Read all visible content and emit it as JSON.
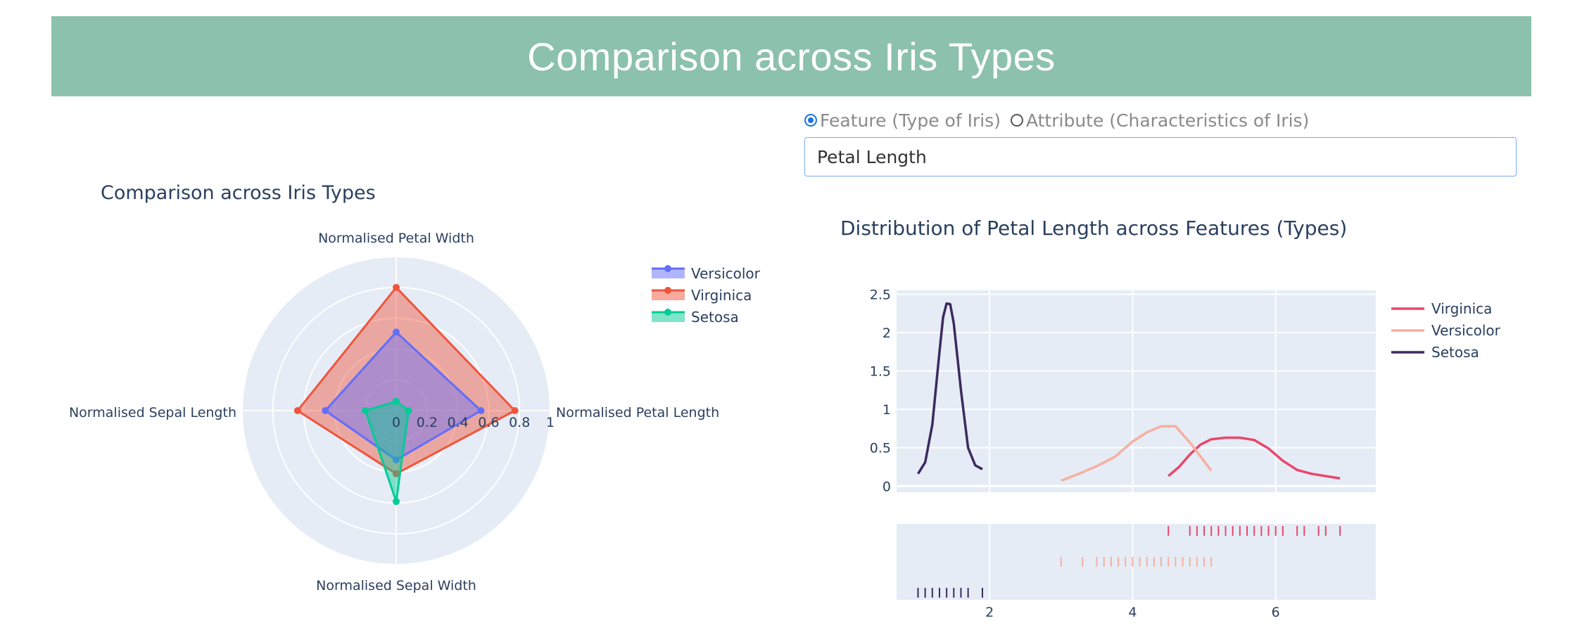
{
  "header": {
    "title": "Comparison across Iris Types"
  },
  "controls": {
    "radio_options": [
      "Feature (Type of Iris)",
      "Attribute (Characteristics of Iris)"
    ],
    "selected_radio": 0,
    "dropdown_value": "Petal Length"
  },
  "colors": {
    "header_bg": "#8bc1ad",
    "plot_bg": "#e5ecf6",
    "versicolor_radar": "#636efa",
    "virginica_radar": "#ef553b",
    "setosa_radar": "#00cc96",
    "virginica_dist": "#e8476a",
    "versicolor_dist": "#f7b0a0",
    "setosa_dist": "#3d2a5e"
  },
  "chart_data": [
    {
      "type": "radar",
      "title": "Comparison across Iris Types",
      "axes": [
        "Normalised Petal Length",
        "Normalised Petal Width",
        "Normalised Sepal Length",
        "Normalised Sepal Width"
      ],
      "radial_range": [
        0,
        1
      ],
      "radial_ticks": [
        "0",
        "0.2",
        "0.4",
        "0.6",
        "0.8",
        "1"
      ],
      "legend_position": "right",
      "series": [
        {
          "name": "Versicolor",
          "values": [
            0.55,
            0.51,
            0.46,
            0.32
          ]
        },
        {
          "name": "Virginica",
          "values": [
            0.77,
            0.8,
            0.64,
            0.41
          ]
        },
        {
          "name": "Setosa",
          "values": [
            0.08,
            0.06,
            0.2,
            0.59
          ]
        }
      ]
    },
    {
      "type": "line",
      "title": "Distribution of Petal Length across Features (Types)",
      "xlim": [
        0.7,
        7.4
      ],
      "ylim": [
        -0.08,
        2.55
      ],
      "x_ticks": [
        2,
        4,
        6
      ],
      "y_ticks": [
        0,
        0.5,
        1,
        1.5,
        2,
        2.5
      ],
      "y_tick_labels": [
        "0",
        "0.5",
        "1",
        "1.5",
        "2",
        "2.5"
      ],
      "legend_position": "right",
      "series": [
        {
          "name": "Virginica",
          "x": [
            4.5,
            4.65,
            4.8,
            4.95,
            5.1,
            5.3,
            5.5,
            5.7,
            5.9,
            6.1,
            6.3,
            6.5,
            6.7,
            6.9
          ],
          "y": [
            0.13,
            0.25,
            0.41,
            0.54,
            0.61,
            0.63,
            0.63,
            0.6,
            0.49,
            0.33,
            0.21,
            0.16,
            0.13,
            0.1
          ],
          "rug": [
            4.5,
            4.8,
            4.9,
            5.0,
            5.1,
            5.2,
            5.3,
            5.4,
            5.5,
            5.6,
            5.7,
            5.8,
            5.9,
            6.0,
            6.1,
            6.3,
            6.4,
            6.6,
            6.7,
            6.9
          ]
        },
        {
          "name": "Versicolor",
          "x": [
            3.0,
            3.25,
            3.5,
            3.75,
            4.0,
            4.2,
            4.4,
            4.6,
            4.8,
            5.1
          ],
          "y": [
            0.07,
            0.16,
            0.26,
            0.38,
            0.58,
            0.7,
            0.78,
            0.78,
            0.57,
            0.2
          ],
          "rug": [
            3.0,
            3.3,
            3.5,
            3.6,
            3.7,
            3.8,
            3.9,
            4.0,
            4.1,
            4.2,
            4.3,
            4.4,
            4.5,
            4.6,
            4.7,
            4.8,
            4.9,
            5.0,
            5.1
          ]
        },
        {
          "name": "Setosa",
          "x": [
            1.0,
            1.1,
            1.2,
            1.3,
            1.35,
            1.4,
            1.45,
            1.5,
            1.6,
            1.7,
            1.8,
            1.9
          ],
          "y": [
            0.16,
            0.31,
            0.8,
            1.75,
            2.2,
            2.38,
            2.37,
            2.12,
            1.25,
            0.5,
            0.27,
            0.22
          ],
          "rug": [
            1.0,
            1.1,
            1.2,
            1.3,
            1.4,
            1.5,
            1.6,
            1.7,
            1.9
          ]
        }
      ]
    }
  ]
}
